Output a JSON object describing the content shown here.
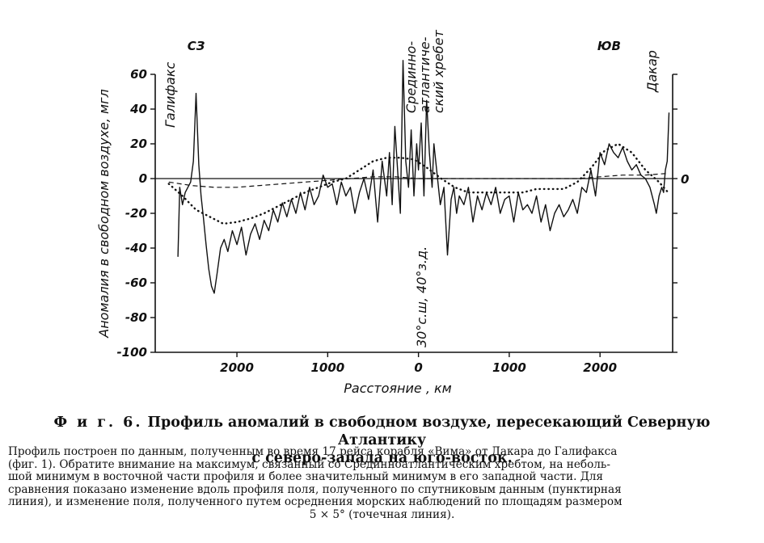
{
  "chart_data": {
    "type": "line",
    "ylabel": "Аномалия в свободном воздухе, мгл",
    "xlabel": "Расстояние , км",
    "yticks": [
      "60",
      "40",
      "20",
      "0",
      "-20",
      "-40",
      "-60",
      "-80",
      "-100"
    ],
    "ylim": [
      -100,
      60
    ],
    "xticks": [
      "2000",
      "1000",
      "0",
      "1000",
      "2000"
    ],
    "xlim": [
      -2900,
      2800
    ],
    "zero_right_label": "0",
    "annotations": {
      "left_dir": "СЗ",
      "right_dir": "ЮВ",
      "left_city": "Галифакс",
      "right_city": "Дакар",
      "ridge": [
        "Срединно-",
        "атлантиче-",
        "ский хребет"
      ],
      "center_coord": "30°с.ш, 40°з.д."
    },
    "series": [
      {
        "style": "solid",
        "x": [
          -2650,
          -2630,
          -2600,
          -2570,
          -2540,
          -2510,
          -2480,
          -2450,
          -2420,
          -2395,
          -2370,
          -2340,
          -2310,
          -2280,
          -2250,
          -2220,
          -2180,
          -2140,
          -2100,
          -2050,
          -2000,
          -1950,
          -1900,
          -1850,
          -1800,
          -1750,
          -1700,
          -1650,
          -1600,
          -1550,
          -1500,
          -1450,
          -1400,
          -1350,
          -1300,
          -1250,
          -1200,
          -1150,
          -1100,
          -1050,
          -1000,
          -950,
          -900,
          -850,
          -800,
          -750,
          -700,
          -650,
          -600,
          -550,
          -500,
          -450,
          -400,
          -350,
          -320,
          -290,
          -260,
          -230,
          -200,
          -170,
          -140,
          -110,
          -80,
          -50,
          -20,
          0,
          30,
          60,
          90,
          120,
          150,
          170,
          200,
          240,
          280,
          320,
          360,
          390,
          420,
          450,
          500,
          550,
          600,
          650,
          700,
          750,
          800,
          850,
          900,
          950,
          1000,
          1050,
          1100,
          1150,
          1200,
          1250,
          1300,
          1350,
          1400,
          1450,
          1500,
          1550,
          1600,
          1650,
          1700,
          1750,
          1800,
          1850,
          1900,
          1950,
          2000,
          2050,
          2100,
          2150,
          2200,
          2250,
          2300,
          2350,
          2400,
          2450,
          2500,
          2550,
          2600,
          2620,
          2650,
          2680,
          2700,
          2720,
          2740,
          2760
        ],
        "y": [
          -45,
          -5,
          -15,
          -8,
          -5,
          -2,
          10,
          49,
          8,
          -10,
          -22,
          -38,
          -52,
          -62,
          -66,
          -55,
          -40,
          -35,
          -42,
          -30,
          -38,
          -28,
          -44,
          -32,
          -26,
          -35,
          -24,
          -30,
          -18,
          -25,
          -14,
          -22,
          -12,
          -20,
          -8,
          -18,
          -5,
          -15,
          -10,
          2,
          -5,
          -3,
          -15,
          -2,
          -10,
          -5,
          -20,
          -8,
          0,
          -12,
          5,
          -25,
          10,
          -10,
          15,
          -15,
          30,
          5,
          -20,
          68,
          10,
          -5,
          28,
          -10,
          20,
          5,
          32,
          -10,
          45,
          15,
          -5,
          20,
          5,
          -15,
          -5,
          -44,
          -12,
          -5,
          -20,
          -10,
          -15,
          -5,
          -25,
          -10,
          -18,
          -8,
          -15,
          -5,
          -20,
          -12,
          -10,
          -25,
          -8,
          -18,
          -15,
          -20,
          -10,
          -25,
          -15,
          -30,
          -20,
          -15,
          -22,
          -18,
          -12,
          -20,
          -5,
          -8,
          5,
          -10,
          15,
          8,
          20,
          15,
          12,
          18,
          10,
          5,
          8,
          2,
          0,
          -5,
          -15,
          -20,
          -10,
          -5,
          -8,
          5,
          10,
          38
        ]
      },
      {
        "style": "dotted",
        "x": [
          -2750,
          -2600,
          -2450,
          -2300,
          -2150,
          -2000,
          -1850,
          -1700,
          -1550,
          -1400,
          -1250,
          -1100,
          -950,
          -800,
          -650,
          -500,
          -350,
          -200,
          -50,
          100,
          250,
          400,
          550,
          700,
          850,
          1000,
          1150,
          1300,
          1450,
          1600,
          1750,
          1900,
          2050,
          2200,
          2350,
          2500,
          2650,
          2750
        ],
        "y": [
          -3,
          -10,
          -18,
          -22,
          -26,
          -25,
          -23,
          -20,
          -16,
          -12,
          -8,
          -5,
          -2,
          0,
          5,
          10,
          12,
          12,
          11,
          6,
          0,
          -5,
          -8,
          -8,
          -8,
          -8,
          -8,
          -6,
          -6,
          -6,
          -2,
          6,
          16,
          20,
          15,
          5,
          -2,
          -8
        ]
      },
      {
        "style": "dashed",
        "x": [
          -2750,
          -2500,
          -2250,
          -2000,
          -1750,
          -1500,
          -1250,
          -1000,
          -750,
          -500,
          -250,
          0,
          250,
          500,
          750,
          1000,
          1250,
          1500,
          1750,
          2000,
          2250,
          2500,
          2750
        ],
        "y": [
          -2,
          -4,
          -5,
          -5,
          -4,
          -3,
          -2,
          -1,
          0,
          1,
          1,
          0,
          0,
          0,
          0,
          0,
          0,
          0,
          0,
          1,
          2,
          2,
          3
        ]
      }
    ]
  },
  "caption": {
    "fig_label": "Ф и г. 6.",
    "title_line1": "Профиль аномалий в свободном воздухе, пересекающий Северную Атлантику",
    "title_line2": "с северо-запада на юго-восток.",
    "body": [
      "Профиль построен по данным, полученным во время 17 рейса корабля «Вима» от Дакара до Галифакса",
      "(фиг. 1). Обратите внимание на максимум, связанный со Срединноатлантическим хребтом, на неболь-",
      "шой минимум в восточной части профиля и более значительный минимум в его западной части. Для",
      "сравнения показано изменение вдоль профиля  поля, полученного по спутниковым данным (пунктирная",
      "линия), и изменение поля, полученного путем осреднения морских наблюдений по площадям размером",
      "5 × 5° (точечная линия)."
    ]
  }
}
